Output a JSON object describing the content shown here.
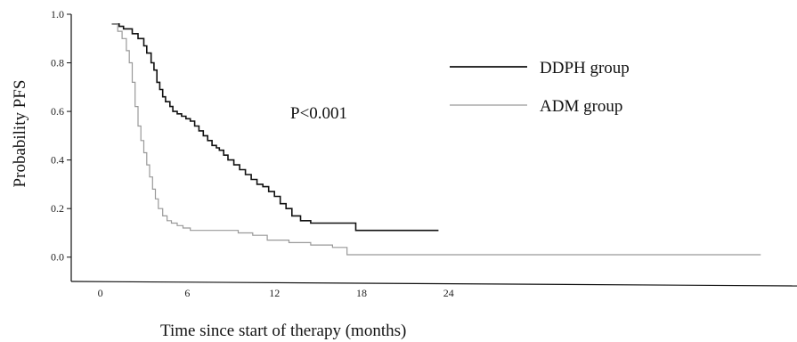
{
  "chart_data": {
    "type": "line",
    "step": true,
    "title": "",
    "xlabel": "Time since start of therapy (months)",
    "ylabel": "Probability PFS",
    "xticks": [
      0,
      6,
      12,
      18,
      24
    ],
    "yticks": [
      "0.0",
      "0.2",
      "0.4",
      "0.6",
      "0.8",
      "1.0"
    ],
    "xlim": [
      -2,
      48
    ],
    "ylim": [
      -0.1,
      1.0
    ],
    "grid": false,
    "legend_position": "top-right",
    "annotation": "P<0.001",
    "series": [
      {
        "name": "DDPH group",
        "color": "#111111",
        "x": [
          0.8,
          1.3,
          1.6,
          2.2,
          2.6,
          3.0,
          3.2,
          3.5,
          3.7,
          3.9,
          4.1,
          4.3,
          4.5,
          4.8,
          5.0,
          5.3,
          5.6,
          5.9,
          6.2,
          6.5,
          6.8,
          7.1,
          7.4,
          7.7,
          8.0,
          8.2,
          8.5,
          8.8,
          9.2,
          9.6,
          10.0,
          10.4,
          10.8,
          11.2,
          11.6,
          12.0,
          12.4,
          12.8,
          13.2,
          13.8,
          14.5,
          17.6,
          23.3
        ],
        "y": [
          0.96,
          0.95,
          0.94,
          0.92,
          0.9,
          0.87,
          0.84,
          0.8,
          0.77,
          0.72,
          0.69,
          0.66,
          0.64,
          0.62,
          0.6,
          0.59,
          0.58,
          0.57,
          0.56,
          0.54,
          0.52,
          0.5,
          0.48,
          0.46,
          0.45,
          0.44,
          0.42,
          0.4,
          0.38,
          0.36,
          0.34,
          0.32,
          0.3,
          0.29,
          0.27,
          0.25,
          0.22,
          0.2,
          0.17,
          0.15,
          0.14,
          0.11,
          0.11
        ]
      },
      {
        "name": "ADM group",
        "color": "#999999",
        "x": [
          0.8,
          1.2,
          1.5,
          1.8,
          2.0,
          2.2,
          2.4,
          2.6,
          2.8,
          3.0,
          3.2,
          3.4,
          3.6,
          3.8,
          4.0,
          4.3,
          4.6,
          4.9,
          5.3,
          5.7,
          6.2,
          7.0,
          9.5,
          10.5,
          11.5,
          13.0,
          14.5,
          16.0,
          17.0,
          45.5
        ],
        "y": [
          0.96,
          0.93,
          0.9,
          0.85,
          0.8,
          0.72,
          0.62,
          0.54,
          0.48,
          0.43,
          0.38,
          0.33,
          0.28,
          0.24,
          0.2,
          0.17,
          0.15,
          0.14,
          0.13,
          0.12,
          0.11,
          0.11,
          0.1,
          0.09,
          0.07,
          0.06,
          0.05,
          0.04,
          0.01,
          0.01
        ]
      }
    ]
  }
}
